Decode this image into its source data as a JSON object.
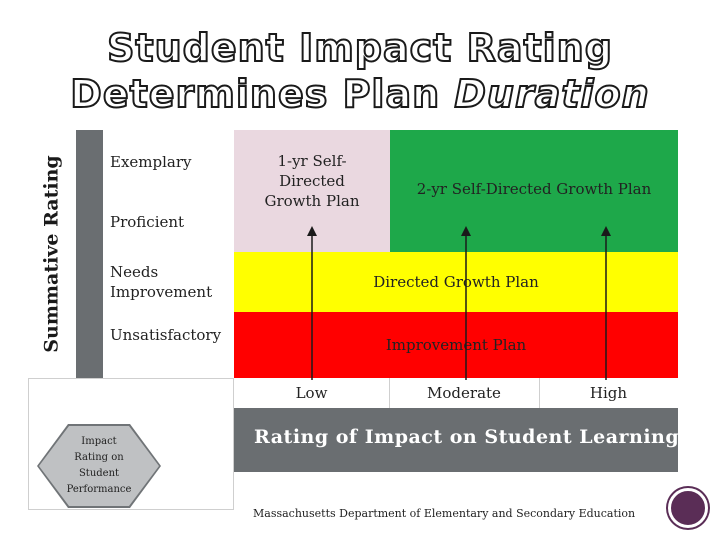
{
  "title": {
    "line1": "Student Impact Rating",
    "line2_main": "Determines Plan ",
    "line2_italic": "Duration"
  },
  "y_axis": {
    "label": "Summative Rating",
    "levels": [
      "Exemplary",
      "Proficient",
      "Needs Improvement",
      "Unsatisfactory"
    ]
  },
  "plans": {
    "one_year": "1-yr Self-Directed Growth Plan",
    "two_year": "2-yr Self-Directed Growth Plan",
    "directed": "Directed Growth Plan",
    "improvement": "Improvement Plan"
  },
  "x_axis": {
    "levels": [
      "Low",
      "Moderate",
      "High"
    ],
    "label": "Rating of Impact on Student Learning"
  },
  "hexagon": {
    "text": "Impact Rating on Student Performance"
  },
  "footer": {
    "text": "Massachusetts Department of Elementary and Secondary Education"
  },
  "colors": {
    "pink": "#ead8e0",
    "green": "#1ea84a",
    "yellow": "#ffff00",
    "red": "#ff0000",
    "gray": "#6a6e71",
    "circle": "#5a2d56"
  },
  "icons": {
    "arrow": "arrow-up-icon",
    "badge": "circle-badge-icon"
  }
}
